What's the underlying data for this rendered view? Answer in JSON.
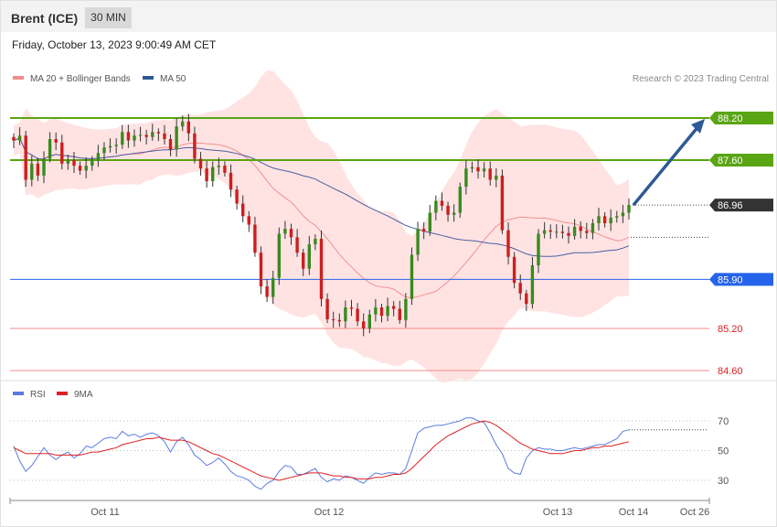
{
  "header": {
    "symbol": "Brent (ICE)",
    "timeframe": "30 MIN"
  },
  "timestamp": "Friday, October 13, 2023 9:00:49 AM CET",
  "legend": {
    "ma20_label": "MA 20 + Bollinger Bands",
    "ma50_label": "MA 50",
    "research": "Research © 2023 Trading Central"
  },
  "rsi_legend": {
    "rsi_label": "RSI",
    "ma9_label": "9MA"
  },
  "colors": {
    "up_candle": "#3a8a1e",
    "down_candle": "#cc1f1f",
    "bollinger": "#ffd9d9",
    "ma20": "#f09090",
    "ma50": "#4a5fa0",
    "resistance": "#5aa513",
    "pivot": "#2563eb",
    "support": "#f08c8c",
    "last_price": "#333333",
    "rsi": "#5b7be0",
    "rsi_ma": "#e02020",
    "arrow": "#2d5a96"
  },
  "chart_data": [
    {
      "type": "candlestick",
      "title": "Brent (ICE) 30 MIN",
      "x_ticks": [
        "Oct 11",
        "Oct 12",
        "Oct 13",
        "Oct 14",
        "Oct 26"
      ],
      "ylim": [
        84.45,
        88.55
      ],
      "levels": [
        {
          "name": "resistance-2",
          "value": 88.2,
          "label": "88.20"
        },
        {
          "name": "resistance-1",
          "value": 87.6,
          "label": "87.60"
        },
        {
          "name": "last-price",
          "value": 86.96,
          "label": "86.96"
        },
        {
          "name": "pivot",
          "value": 85.9,
          "label": "85.90"
        },
        {
          "name": "support-1",
          "value": 85.2,
          "label": "85.20"
        },
        {
          "name": "support-2",
          "value": 84.6,
          "label": "84.60"
        }
      ],
      "close": [
        87.88,
        87.95,
        87.32,
        87.55,
        87.38,
        87.62,
        87.9,
        87.85,
        87.55,
        87.6,
        87.52,
        87.45,
        87.52,
        87.6,
        87.7,
        87.78,
        87.8,
        87.82,
        88.0,
        87.88,
        87.95,
        87.96,
        87.93,
        88.0,
        87.98,
        87.9,
        87.75,
        88.08,
        88.15,
        87.98,
        87.62,
        87.48,
        87.3,
        87.5,
        87.52,
        87.42,
        87.18,
        86.98,
        86.8,
        86.68,
        86.28,
        85.8,
        85.65,
        85.92,
        86.55,
        86.62,
        86.5,
        86.28,
        86.05,
        86.4,
        86.48,
        85.62,
        85.33,
        85.32,
        85.3,
        85.5,
        85.48,
        85.3,
        85.2,
        85.4,
        85.5,
        85.38,
        85.52,
        85.48,
        85.32,
        85.62,
        86.25,
        86.62,
        86.58,
        86.85,
        87.02,
        86.95,
        86.82,
        86.85,
        87.22,
        87.48,
        87.5,
        87.44,
        87.48,
        87.32,
        87.38,
        86.6,
        86.22,
        85.85,
        85.7,
        85.55,
        86.1,
        86.55,
        86.6,
        86.58,
        86.58,
        86.56,
        86.52,
        86.65,
        86.59,
        86.56,
        86.7,
        86.8,
        86.7,
        86.78,
        86.8,
        86.85,
        86.96
      ]
    },
    {
      "type": "line",
      "title": "RSI",
      "ylim": [
        18,
        80
      ],
      "y_ticks": [
        70,
        50,
        30
      ],
      "series": [
        {
          "name": "RSI",
          "values": [
            53,
            43,
            36,
            40,
            46,
            52,
            47,
            44,
            47,
            49,
            45,
            48,
            53,
            52,
            55,
            58,
            59,
            58,
            63,
            60,
            61,
            59,
            61,
            62,
            60,
            56,
            49,
            56,
            59,
            54,
            47,
            44,
            40,
            42,
            45,
            41,
            36,
            33,
            32,
            30,
            26,
            24,
            28,
            30,
            36,
            40,
            39,
            34,
            34,
            36,
            38,
            32,
            29,
            31,
            30,
            33,
            32,
            30,
            28,
            32,
            35,
            34,
            35,
            35,
            34,
            38,
            50,
            62,
            65,
            66,
            67,
            67,
            68,
            69,
            70,
            72,
            72,
            70,
            69,
            62,
            54,
            48,
            38,
            35,
            34,
            45,
            50,
            52,
            51,
            51,
            50,
            50,
            51,
            52,
            51,
            52,
            53,
            54,
            54,
            56,
            58,
            63,
            64
          ]
        },
        {
          "name": "9MA",
          "values": [
            52,
            50,
            48,
            48,
            48,
            48,
            48,
            47,
            47,
            47,
            47,
            47,
            48,
            49,
            49,
            50,
            51,
            52,
            54,
            55,
            56,
            57,
            58,
            58,
            59,
            58,
            57,
            57,
            57,
            56,
            54,
            52,
            50,
            48,
            47,
            45,
            43,
            41,
            39,
            37,
            35,
            33,
            32,
            31,
            30,
            31,
            32,
            33,
            34,
            35,
            35,
            35,
            34,
            33,
            33,
            32,
            32,
            31,
            31,
            31,
            32,
            32,
            33,
            34,
            34,
            35,
            38,
            42,
            46,
            50,
            54,
            57,
            60,
            62,
            64,
            66,
            68,
            69,
            70,
            69,
            67,
            64,
            61,
            58,
            55,
            53,
            51,
            50,
            49,
            48,
            48,
            48,
            49,
            50,
            50,
            51,
            52,
            52,
            53,
            53,
            54,
            55,
            56
          ]
        }
      ]
    }
  ]
}
